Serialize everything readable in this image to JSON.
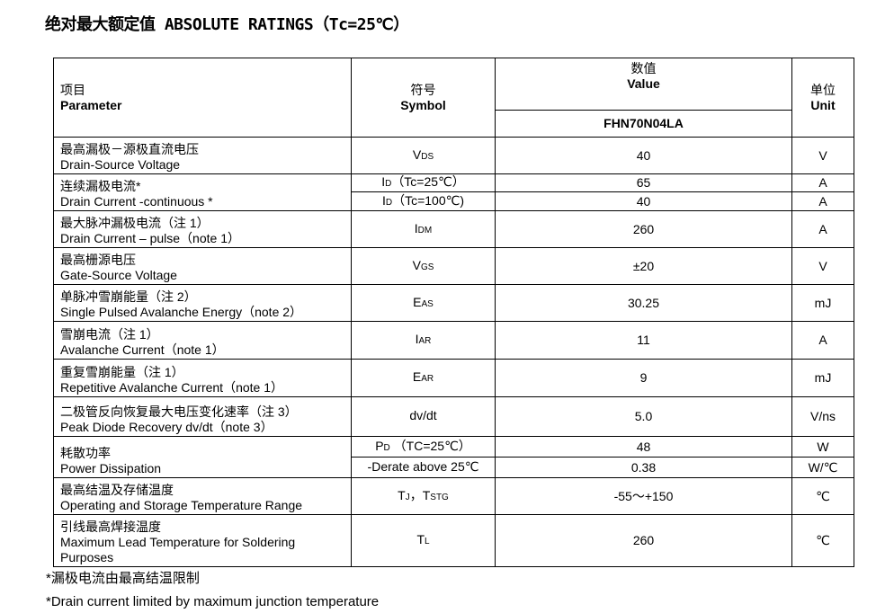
{
  "title": "绝对最大额定值 ABSOLUTE RATINGS（Tc=25℃）",
  "header": {
    "param_cn": "项目",
    "param_en": "Parameter",
    "symbol_cn": "符号",
    "symbol_en": "Symbol",
    "value_cn": "数值",
    "value_en": "Value",
    "part": "FHN70N04LA",
    "unit_cn": "单位",
    "unit_en": "Unit"
  },
  "rows": [
    {
      "cn": "最高漏极－源极直流电压",
      "en": "Drain-Source Voltage",
      "sub": [
        {
          "s": "V",
          "ss": "DS",
          "sx": "",
          "v": "40",
          "u": "V"
        }
      ]
    },
    {
      "cn": "连续漏极电流*",
      "en": "Drain Current -continuous *",
      "sub": [
        {
          "s": "I",
          "ss": "D",
          "sx": "（Tc=25℃）",
          "v": "65",
          "u": "A"
        },
        {
          "s": "I",
          "ss": "D",
          "sx": "（Tc=100℃)",
          "v": "40",
          "u": "A"
        }
      ]
    },
    {
      "cn": "最大脉冲漏极电流（注 1）",
      "en": "Drain Current – pulse（note 1）",
      "sub": [
        {
          "s": "I",
          "ss": "DM",
          "sx": "",
          "v": "260",
          "u": "A"
        }
      ]
    },
    {
      "cn": "最高栅源电压",
      "en": "Gate-Source Voltage",
      "sub": [
        {
          "s": "V",
          "ss": "GS",
          "sx": "",
          "v": "±20",
          "u": "V"
        }
      ]
    },
    {
      "cn": "单脉冲雪崩能量（注 2）",
      "en": "Single Pulsed Avalanche Energy（note 2）",
      "sub": [
        {
          "s": "E",
          "ss": "AS",
          "sx": "",
          "v": "30.25",
          "u": "mJ"
        }
      ]
    },
    {
      "cn": "雪崩电流（注 1）",
      "en": "Avalanche Current（note 1）",
      "sub": [
        {
          "s": "I",
          "ss": "AR",
          "sx": "",
          "v": "11",
          "u": "A"
        }
      ]
    },
    {
      "cn": "重复雪崩能量（注 1）",
      "en": "Repetitive Avalanche Current（note 1）",
      "sub": [
        {
          "s": "E",
          "ss": "AR",
          "sx": "",
          "v": "9",
          "u": "mJ"
        }
      ]
    },
    {
      "cn": "二极管反向恢复最大电压变化速率（注 3）",
      "en": " Peak Diode Recovery dv/dt（note 3）",
      "sub": [
        {
          "s": "dv/dt",
          "ss": "",
          "sx": "",
          "v": "5.0",
          "u": "V/ns"
        }
      ]
    },
    {
      "cn": "耗散功率",
      "en": "Power Dissipation",
      "sub": [
        {
          "s": "P",
          "ss": "D",
          "sx": " （TC=25℃）",
          "v": "48",
          "u": "W"
        },
        {
          "s": "-Derate above 25℃",
          "ss": "",
          "sx": "",
          "v": "0.38",
          "u": "W/℃"
        }
      ]
    },
    {
      "cn": "最高结温及存储温度",
      "en": "Operating and Storage Temperature Range",
      "sub": [
        {
          "s": "T",
          "ss": "J",
          "sx": "，T",
          "ss2": "STG",
          "v": "-55～+150",
          "u": "℃"
        }
      ]
    },
    {
      "cn": "引线最高焊接温度",
      "en": "Maximum Lead Temperature for Soldering Purposes",
      "sub": [
        {
          "s": "T",
          "ss": "L",
          "sx": "",
          "v": "260",
          "u": "℃"
        }
      ]
    }
  ],
  "footnote_cn": "*漏极电流由最高结温限制",
  "footnote_en": "*Drain current limited by maximum junction temperature"
}
